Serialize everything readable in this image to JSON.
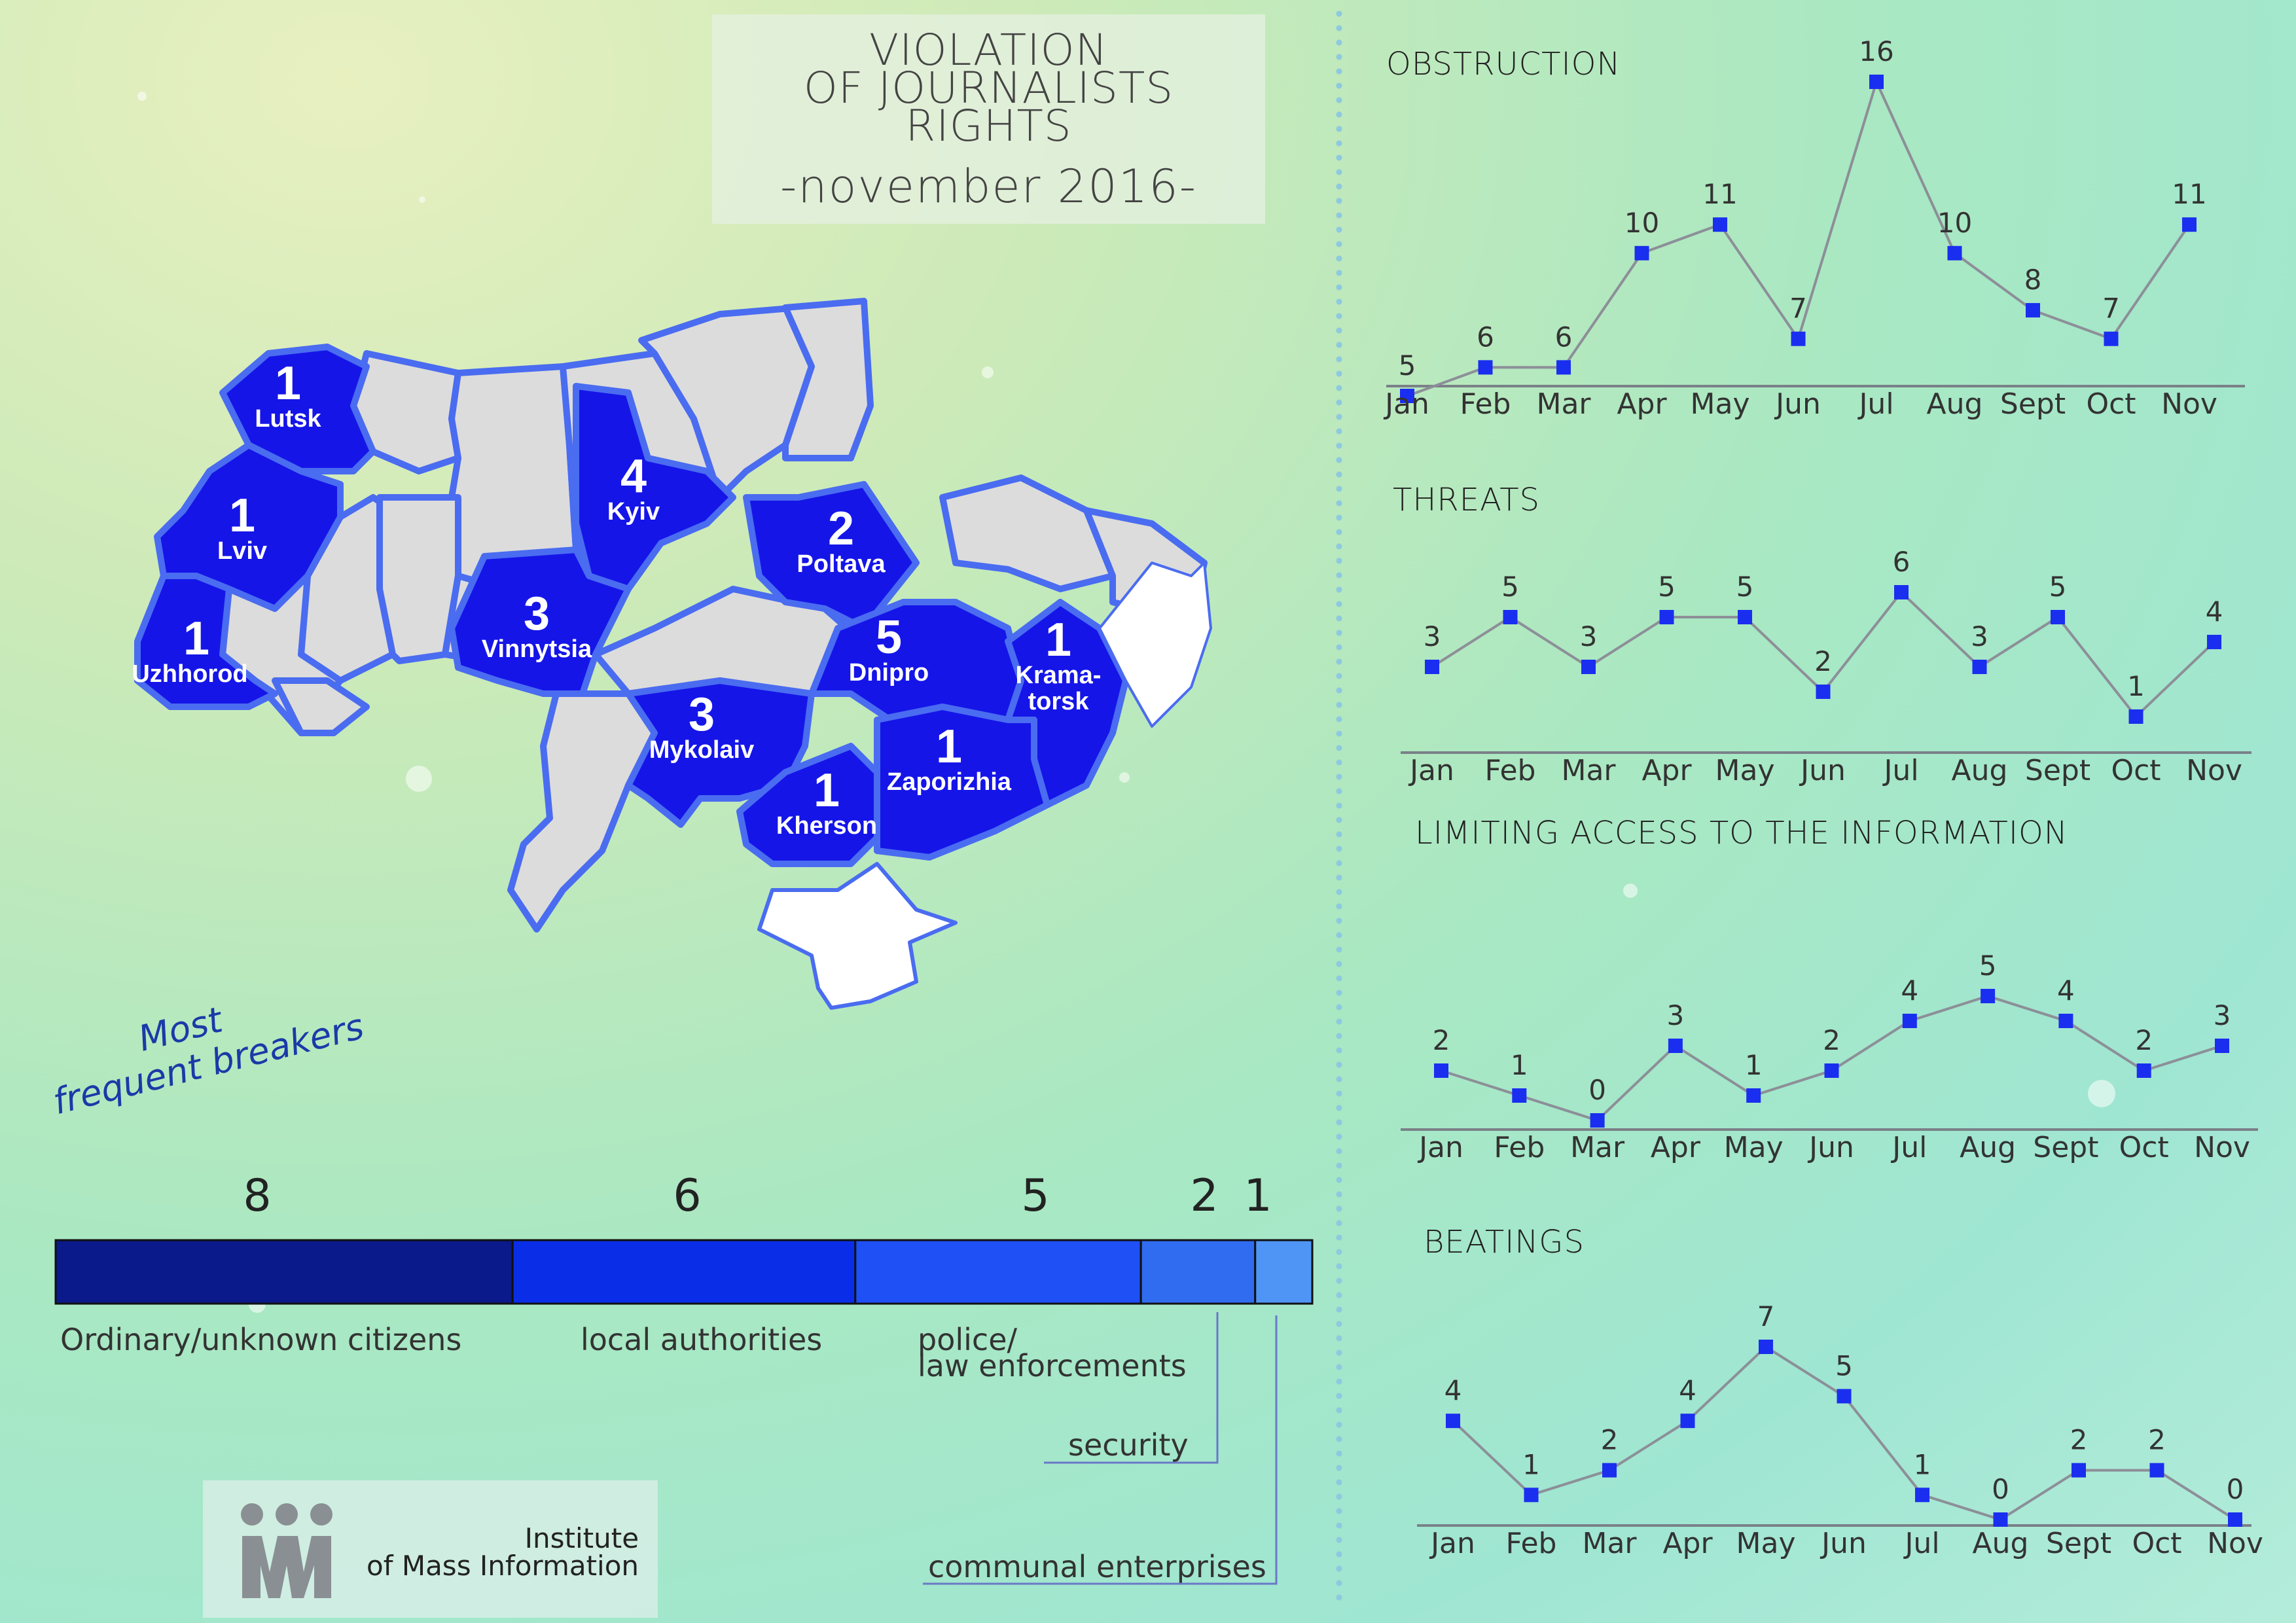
{
  "title": {
    "line1": "VIOLATION",
    "line2": "OF JOURNALISTS",
    "line3": "RIGHTS",
    "subtitle": "-november 2016-"
  },
  "map": {
    "regions": [
      {
        "name": "Lutsk",
        "value": 1
      },
      {
        "name": "Lviv",
        "value": 1
      },
      {
        "name": "Uzhhorod",
        "value": 1
      },
      {
        "name": "Kyiv",
        "value": 4
      },
      {
        "name": "Vinnytsia",
        "value": 3
      },
      {
        "name": "Poltava",
        "value": 2
      },
      {
        "name": "Dnipro",
        "value": 5
      },
      {
        "name": "Krama-\ntorsk",
        "value": 1
      },
      {
        "name": "Mykolaiv",
        "value": 3
      },
      {
        "name": "Kherson",
        "value": 1
      },
      {
        "name": "Zaporizhia",
        "value": 1
      }
    ],
    "colors": {
      "highlight": "#1515e8",
      "border": "#4a6cf0",
      "plain": "#dcdcdc",
      "occupied": "#ffffff"
    }
  },
  "breakers": {
    "title_line1": "Most",
    "title_line2": "frequent breakers",
    "items": [
      {
        "label": "Ordinary/unknown citizens",
        "value": 8,
        "color": "#0a1a8a"
      },
      {
        "label": "local authorities",
        "value": 6,
        "color": "#0a2ee8"
      },
      {
        "label": "police/\nlaw enforcements",
        "value": 5,
        "color": "#1e50f5"
      },
      {
        "label": "security",
        "value": 2,
        "color": "#2f6cf0"
      },
      {
        "label": "communal enterprises",
        "value": 1,
        "color": "#4f95f5"
      }
    ]
  },
  "logo": {
    "line1": "Institute",
    "line2": "of Mass Information"
  },
  "chart_data": [
    {
      "type": "line",
      "title": "OBSTRUCTION",
      "categories": [
        "Jan",
        "Feb",
        "Mar",
        "Apr",
        "May",
        "Jun",
        "Jul",
        "Aug",
        "Sept",
        "Oct",
        "Nov"
      ],
      "values": [
        5,
        6,
        6,
        10,
        11,
        7,
        16,
        10,
        8,
        7,
        11
      ]
    },
    {
      "type": "line",
      "title": "THREATS",
      "categories": [
        "Jan",
        "Feb",
        "Mar",
        "Apr",
        "May",
        "Jun",
        "Jul",
        "Aug",
        "Sept",
        "Oct",
        "Nov"
      ],
      "values": [
        3,
        5,
        3,
        5,
        5,
        2,
        6,
        3,
        5,
        1,
        4
      ]
    },
    {
      "type": "line",
      "title": "LIMITING ACCESS TO THE INFORMATION",
      "categories": [
        "Jan",
        "Feb",
        "Mar",
        "Apr",
        "May",
        "Jun",
        "Jul",
        "Aug",
        "Sept",
        "Oct",
        "Nov"
      ],
      "values": [
        2,
        1,
        0,
        3,
        1,
        2,
        4,
        5,
        4,
        2,
        3
      ]
    },
    {
      "type": "line",
      "title": "BEATINGS",
      "categories": [
        "Jan",
        "Feb",
        "Mar",
        "Apr",
        "May",
        "Jun",
        "Jul",
        "Aug",
        "Sept",
        "Oct",
        "Nov"
      ],
      "values": [
        4,
        1,
        2,
        4,
        7,
        5,
        1,
        0,
        2,
        2,
        0
      ]
    }
  ]
}
